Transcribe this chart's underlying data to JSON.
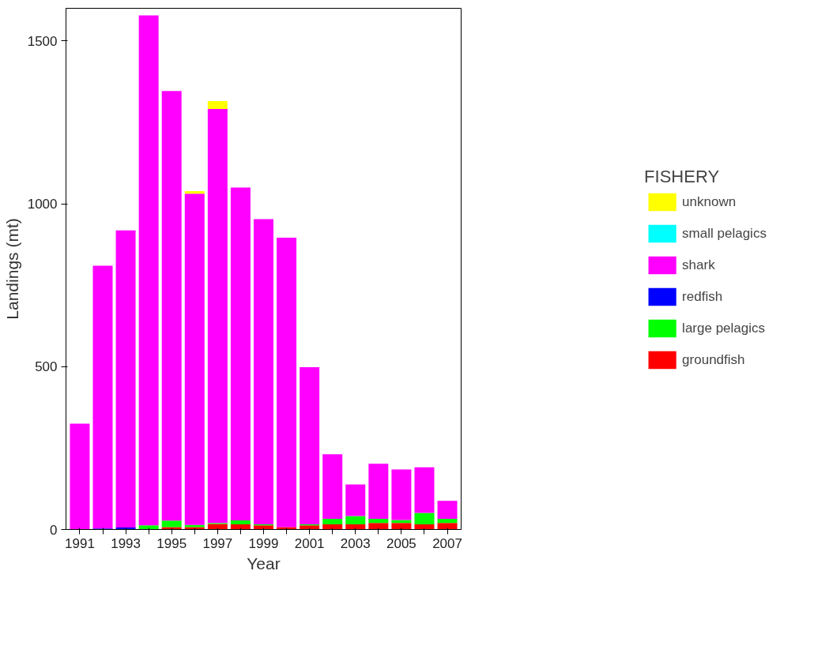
{
  "chart_data": {
    "type": "bar",
    "stacked": true,
    "xlabel": "Year",
    "ylabel": "Landings (mt)",
    "legend_title": "FISHERY",
    "legend": "right",
    "grid": false,
    "categories": [
      "1991",
      null,
      "1993",
      null,
      "1995",
      null,
      "1997",
      null,
      "1999",
      null,
      "2001",
      null,
      "2003",
      null,
      "2005",
      null,
      "2007"
    ],
    "ylim": [
      0,
      1600
    ],
    "yticks": [
      0,
      500,
      1000,
      1500
    ],
    "series": [
      {
        "name": "groundfish",
        "color": "#ff0000",
        "values": [
          0,
          0,
          0,
          null,
          7,
          7,
          17,
          16,
          13,
          7,
          13,
          16,
          16,
          20,
          20,
          16,
          20
        ]
      },
      {
        "name": "large pelagics",
        "color": "#00ff00",
        "values": [
          0,
          0,
          0,
          13,
          20,
          7,
          3,
          12,
          3,
          0,
          3,
          17,
          25,
          13,
          9,
          35,
          13
        ]
      },
      {
        "name": "redfish",
        "color": "#0000ff",
        "values": [
          0,
          3,
          6,
          0,
          0,
          0,
          0,
          0,
          0,
          0,
          0,
          0,
          0,
          0,
          0,
          0,
          0
        ]
      },
      {
        "name": "shark",
        "color": "#ff00ff",
        "values": [
          325,
          807,
          912,
          1565,
          1319,
          1017,
          1271,
          1022,
          937,
          889,
          482,
          198,
          97,
          169,
          155,
          140,
          55
        ]
      },
      {
        "name": "small pelagics",
        "color": "#00ffff",
        "values": [
          0,
          0,
          0,
          0,
          0,
          0,
          0,
          0,
          0,
          0,
          0,
          0,
          0,
          0,
          0,
          0,
          0
        ]
      },
      {
        "name": "unknown",
        "color": "#ffff00",
        "values": [
          0,
          0,
          0,
          0,
          0,
          8,
          24,
          0,
          0,
          0,
          0,
          0,
          0,
          0,
          0,
          0,
          0
        ]
      }
    ]
  }
}
